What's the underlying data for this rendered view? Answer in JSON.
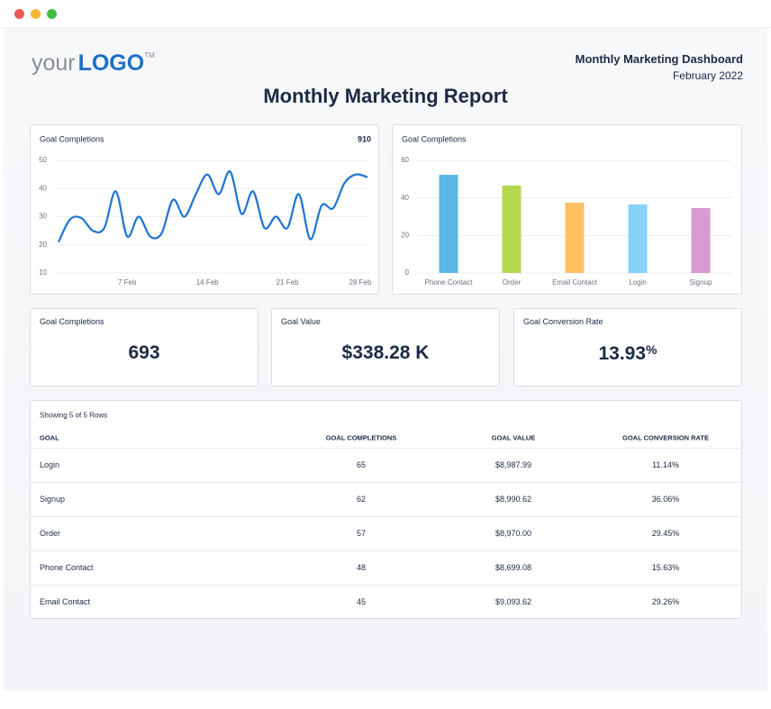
{
  "header": {
    "logo_prefix": "your",
    "logo_main": "LOGO",
    "logo_mark": "TM",
    "dashboard_name": "Monthly Marketing Dashboard",
    "date": "February 2022",
    "title": "Monthly Marketing Report"
  },
  "chart_data": [
    {
      "type": "line",
      "title": "Goal Completions",
      "total": 910,
      "x": [
        1,
        2,
        3,
        4,
        5,
        6,
        7,
        8,
        9,
        10,
        11,
        12,
        13,
        14,
        15,
        16,
        17,
        18,
        19,
        20,
        21,
        22,
        23,
        24,
        25,
        26,
        27,
        28
      ],
      "values": [
        21,
        29,
        29.5,
        25,
        26,
        39,
        23,
        30,
        23,
        24,
        36,
        30,
        38,
        45,
        38,
        46,
        31,
        39,
        26,
        30,
        26,
        38,
        22,
        34,
        33,
        42,
        45,
        44
      ],
      "color": "#1f74d0",
      "xlim": [
        1,
        28
      ],
      "xticks": [
        {
          "value": 7,
          "label": "7 Feb"
        },
        {
          "value": 14,
          "label": "14 Feb"
        },
        {
          "value": 21,
          "label": "21 Feb"
        },
        {
          "value": 28,
          "label": "28 Feb"
        }
      ],
      "ylim": [
        10,
        50
      ],
      "yticks": [
        10,
        20,
        30,
        40,
        50
      ],
      "grid": true
    },
    {
      "type": "bar",
      "title": "Goal Completions",
      "categories": [
        "Phone Contact",
        "Order",
        "Email Contact",
        "Login",
        "Signup"
      ],
      "values": [
        52.3,
        46.6,
        37.4,
        36.5,
        34.6
      ],
      "colors": [
        "#5cb8e6",
        "#b5d84f",
        "#fdc164",
        "#86d2f8",
        "#d89ad0"
      ],
      "ylim": [
        0,
        60
      ],
      "yticks": [
        0,
        20,
        40,
        60
      ],
      "grid": true
    }
  ],
  "kpis": [
    {
      "label": "Goal Completions",
      "value": "693"
    },
    {
      "label": "Goal Value",
      "value": "$338.28 K"
    },
    {
      "label": "Goal Conversion Rate",
      "value": "13.93",
      "unit": "%"
    }
  ],
  "table": {
    "note": "Showing 5 of 5 Rows",
    "columns": [
      "GOAL",
      "GOAL COMPLETIONS",
      "GOAL VALUE",
      "GOAL CONVERSION RATE"
    ],
    "rows": [
      [
        "Login",
        65,
        "$8,987.99",
        "11.14%"
      ],
      [
        "Signup",
        62,
        "$8,990.62",
        "36.06%"
      ],
      [
        "Order",
        57,
        "$8,970.00",
        "29.45%"
      ],
      [
        "Phone Contact",
        48,
        "$8,699.08",
        "15.63%"
      ],
      [
        "Email Contact",
        45,
        "$9,093.62",
        "29.26%"
      ]
    ]
  }
}
